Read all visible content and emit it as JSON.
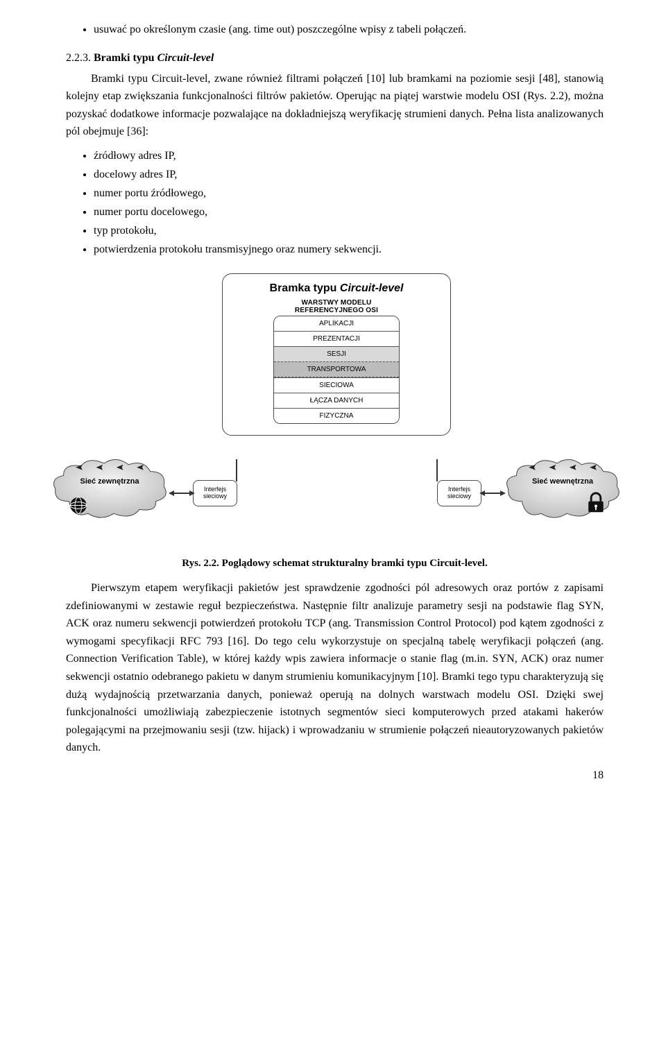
{
  "bullets_top": [
    "usuwać po określonym czasie (ang. time out) poszczególne wpisy z tabeli połączeń."
  ],
  "section_number": "2.2.3.",
  "section_title_pre": "Bramki typu ",
  "section_title_it": "Circuit-level",
  "para1": "Bramki typu Circuit-level, zwane również filtrami połączeń [10] lub bramkami na poziomie sesji [48], stanowią kolejny etap zwiększania funkcjonalności filtrów pakietów. Operując na piątej warstwie modelu OSI (Rys. 2.2), można pozyskać dodatkowe informacje pozwalające na dokładniejszą weryfikację strumieni danych. Pełna lista analizowanych pól obejmuje [36]:",
  "bullets_mid": [
    "źródłowy adres IP,",
    "docelowy adres IP,",
    "numer portu źródłowego,",
    "numer portu docelowego,",
    "typ protokołu,",
    "potwierdzenia protokołu transmisyjnego oraz numery sekwencji."
  ],
  "figure": {
    "title_pre": "Bramka typu ",
    "title_it": "Circuit-level",
    "subtitle": "WARSTWY MODELU\nREFERENCYJNEGO OSI",
    "layers": [
      "APLIKACJI",
      "PREZENTACJI",
      "SESJI",
      "TRANSPORTOWA",
      "SIECIOWA",
      "ŁĄCZA DANYCH",
      "FIZYCZNA"
    ],
    "highlight_layers": {
      "SESJI": "hl-1",
      "TRANSPORTOWA": "hl-2"
    },
    "ifc_line1": "Interfejs",
    "ifc_line2": "sieciowy",
    "cloud_left": "Sieć zewnętrzna",
    "cloud_right": "Sieć wewnętrzna"
  },
  "caption": "Rys. 2.2. Poglądowy schemat strukturalny bramki typu Circuit-level.",
  "para2": "Pierwszym etapem weryfikacji pakietów jest sprawdzenie zgodności pól adresowych oraz portów z zapisami zdefiniowanymi w zestawie reguł bezpieczeństwa. Następnie filtr analizuje parametry sesji na podstawie flag SYN, ACK oraz numeru sekwencji potwierdzeń protokołu TCP (ang. Transmission Control Protocol) pod kątem zgodności z wymogami specyfikacji RFC 793 [16]. Do tego celu wykorzystuje on specjalną tabelę weryfikacji połączeń (ang. Connection Verification Table), w której każdy wpis zawiera informacje o stanie flag (m.in. SYN, ACK) oraz numer sekwencji ostatnio odebranego pakietu w danym strumieniu komunikacyjnym [10]. Bramki tego typu charakteryzują się dużą wydajnością przetwarzania danych, ponieważ operują na dolnych warstwach modelu OSI. Dzięki swej funkcjonalności umożliwiają zabezpieczenie istotnych segmentów sieci komputerowych przed atakami hakerów polegającymi na przejmowaniu sesji (tzw. hijack) i wprowadzaniu w strumienie połączeń nieautoryzowanych pakietów danych.",
  "page_number": "18"
}
